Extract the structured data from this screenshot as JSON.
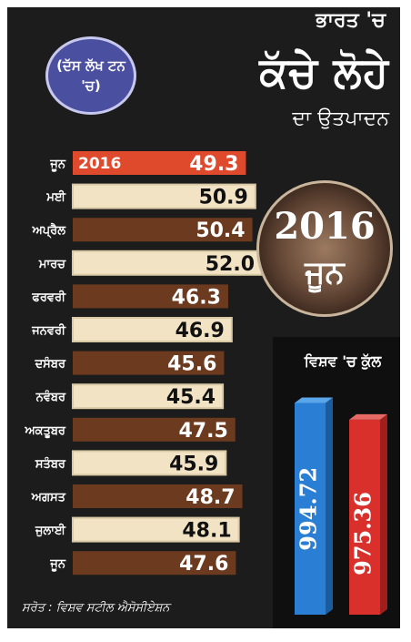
{
  "header": {
    "line1": "ਭਾਰਤ 'ਚ",
    "main": "ਕੱਚੇ ਲੋਹੇ",
    "line3": "ਦਾ ਉਤਪਾਦਨ"
  },
  "unit_badge": {
    "text": "(ਦੱਸ ਲੱਖ ਟਨ 'ਚ)"
  },
  "badge2016": {
    "year": "2016",
    "month": "ਜੂਨ"
  },
  "world": {
    "label": "ਵਿਸ਼ਵ 'ਚ ਕੁੱਲ"
  },
  "source": "ਸਰੋਤ : ਵਿਸ਼ਵ ਸਟੀਲ ਐਸੋਸੀਏਸ਼ਨ",
  "colors": {
    "highlight_bar": "#e04a2c",
    "light_bar": "#f2e3c4",
    "dark_bar": "#6b3a1f",
    "world_bar_blue": "#2a7fd4",
    "world_bar_red": "#d9302c"
  },
  "chart_data": [
    {
      "type": "bar",
      "orientation": "horizontal",
      "title": "",
      "categories": [
        "ਜੂਨ",
        "ਮਈ",
        "ਅਪ੍ਰੈਲ",
        "ਮਾਰਚ",
        "ਫਰਵਰੀ",
        "ਜਨਵਰੀ",
        "ਦਸੰਬਰ",
        "ਨਵੰਬਰ",
        "ਅਕਤੂਬਰ",
        "ਸਤੰਬਰ",
        "ਅਗਸਤ",
        "ਜੁਲਾਈ",
        "ਜੂਨ"
      ],
      "values": [
        49.3,
        50.9,
        50.4,
        52.0,
        46.3,
        46.9,
        45.6,
        45.4,
        47.5,
        45.9,
        48.7,
        48.1,
        47.6
      ],
      "value_labels": [
        "49.3",
        "50.9",
        "50.4",
        "52.0",
        "46.3",
        "46.9",
        "45.6",
        "45.4",
        "47.5",
        "45.9",
        "48.7",
        "48.1",
        "47.6"
      ],
      "highlight_index": 0,
      "highlight_tag": "2016",
      "bar_style": [
        "highlight",
        "light",
        "dark",
        "light",
        "dark",
        "light",
        "dark",
        "light",
        "dark",
        "light",
        "dark",
        "light",
        "dark"
      ],
      "grid": false
    },
    {
      "type": "bar",
      "orientation": "vertical",
      "title": "",
      "values": [
        994.72,
        975.36
      ],
      "value_labels": [
        "994.72",
        "975.36"
      ],
      "bar_colors": [
        "blue",
        "red"
      ]
    }
  ]
}
